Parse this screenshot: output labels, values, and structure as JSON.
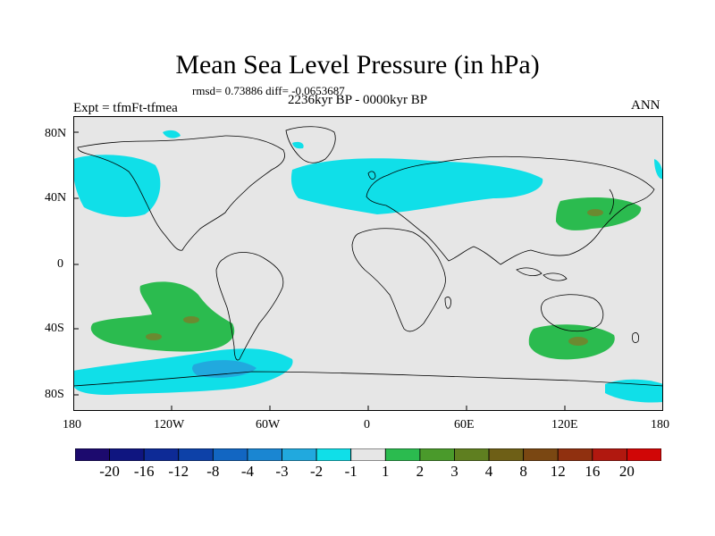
{
  "title": "Mean Sea Level Pressure (in hPa)",
  "stats": "rmsd= 0.73886 diff= -0.0653687",
  "period": "2236kyr BP - 0000kyr BP",
  "experiment": "Expt = tfmFt-tfmea",
  "season": "ANN",
  "lat_labels": [
    "80N",
    "40N",
    "0",
    "40S",
    "80S"
  ],
  "lon_labels": [
    "180",
    "120W",
    "60W",
    "0",
    "60E",
    "120E",
    "180"
  ],
  "colorbar": {
    "labels": [
      "-20",
      "-16",
      "-12",
      "-8",
      "-4",
      "-3",
      "-2",
      "-1",
      "1",
      "2",
      "3",
      "4",
      "8",
      "12",
      "16",
      "20"
    ],
    "colors": [
      "#1c0a6e",
      "#0f1580",
      "#0d2a96",
      "#0d41a8",
      "#1266c2",
      "#1a86d2",
      "#21a9de",
      "#10dfe8",
      "#e6e6e6",
      "#2bbb4f",
      "#4a9a2b",
      "#5f7f20",
      "#6e5f16",
      "#7a4712",
      "#90300f",
      "#b1180f",
      "#d10606"
    ]
  },
  "colors": {
    "land_ocean_bg": "#e6e6e6",
    "coast": "#000000"
  }
}
